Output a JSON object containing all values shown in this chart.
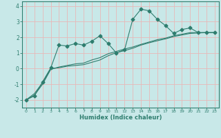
{
  "bg_color": "#c8e8e8",
  "grid_color": "#e8b8b8",
  "line_color": "#2e7d6e",
  "xlabel": "Humidex (Indice chaleur)",
  "xlim": [
    -0.5,
    23.5
  ],
  "ylim": [
    -2.5,
    4.3
  ],
  "yticks": [
    -2,
    -1,
    0,
    1,
    2,
    3,
    4
  ],
  "xticks": [
    0,
    1,
    2,
    3,
    4,
    5,
    6,
    7,
    8,
    9,
    10,
    11,
    12,
    13,
    14,
    15,
    16,
    17,
    18,
    19,
    20,
    21,
    22,
    23
  ],
  "series1_x": [
    0,
    1,
    2,
    3,
    4,
    5,
    6,
    7,
    8,
    9,
    10,
    11,
    12,
    13,
    14,
    15,
    16,
    17,
    18,
    19,
    20,
    21,
    22,
    23
  ],
  "series1_y": [
    -2.0,
    -1.75,
    -0.85,
    0.05,
    1.5,
    1.45,
    1.6,
    1.5,
    1.75,
    2.1,
    1.6,
    1.0,
    1.2,
    3.15,
    3.8,
    3.7,
    3.15,
    2.75,
    2.25,
    2.5,
    2.6,
    2.3,
    2.3,
    2.3
  ],
  "series2_x": [
    0,
    1,
    2,
    3,
    4,
    5,
    6,
    7,
    8,
    9,
    10,
    11,
    12,
    13,
    14,
    15,
    16,
    17,
    18,
    19,
    20,
    21,
    22,
    23
  ],
  "series2_y": [
    -2.0,
    -1.7,
    -1.0,
    -0.05,
    0.1,
    0.2,
    0.3,
    0.35,
    0.55,
    0.7,
    0.95,
    1.1,
    1.25,
    1.38,
    1.55,
    1.7,
    1.85,
    1.95,
    2.1,
    2.2,
    2.3,
    2.3,
    2.3,
    2.3
  ],
  "series3_x": [
    0,
    1,
    2,
    3,
    4,
    5,
    6,
    7,
    8,
    9,
    10,
    11,
    12,
    13,
    14,
    15,
    16,
    17,
    18,
    19,
    20,
    21,
    22,
    23
  ],
  "series3_y": [
    -2.0,
    -1.6,
    -0.9,
    0.0,
    0.05,
    0.15,
    0.2,
    0.25,
    0.4,
    0.55,
    0.82,
    1.02,
    1.15,
    1.3,
    1.5,
    1.65,
    1.78,
    1.9,
    2.05,
    2.15,
    2.25,
    2.28,
    2.3,
    2.3
  ]
}
